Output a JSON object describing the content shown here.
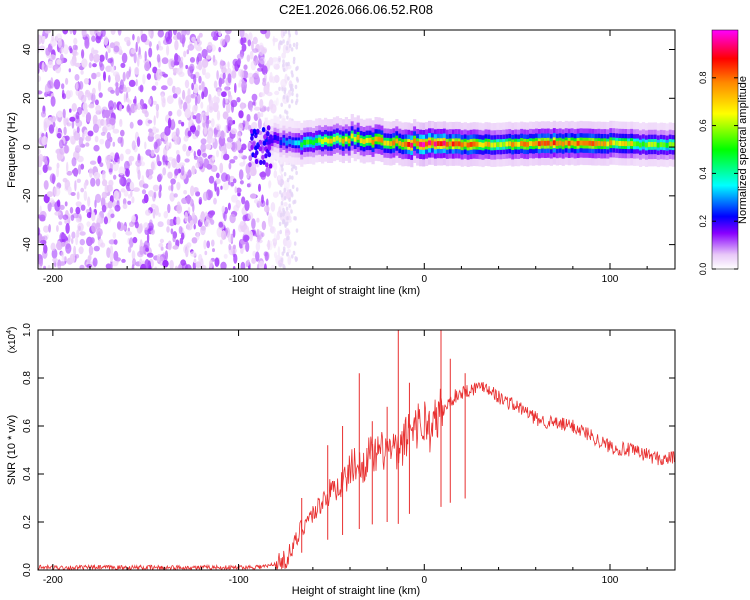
{
  "figure_title": "C2E1.2026.066.06.52.R08",
  "chart_data": [
    {
      "type": "heatmap",
      "title": "C2E1.2026.066.06.52.R08",
      "xlabel": "Height of straight line (km)",
      "ylabel": "Frequency (Hz)",
      "xlim": [
        -208,
        135
      ],
      "ylim": [
        -50,
        48
      ],
      "xticks": [
        -200,
        -100,
        0,
        100
      ],
      "yticks": [
        -40,
        -20,
        0,
        20,
        40
      ],
      "colorbar": {
        "label": "Normalized spectral amplitude",
        "range": [
          0,
          1
        ],
        "ticks": [
          0.0,
          0.2,
          0.4,
          0.6,
          0.8
        ],
        "colormap": [
          "#ffffff",
          "#e8c8f8",
          "#8800ff",
          "#0000ff",
          "#00ffff",
          "#00ff00",
          "#ffff00",
          "#ff8800",
          "#ff0000",
          "#ff00ff"
        ]
      },
      "description": "Broadband noise below about -80 km; narrowband signal near 0 Hz from -80 km to the end of the axis",
      "noise_region_km": [
        -208,
        -78
      ],
      "signal_band_points": [
        {
          "x": -90,
          "y": 2,
          "amp": 0.35
        },
        {
          "x": -80,
          "y": 3,
          "amp": 0.3
        },
        {
          "x": -70,
          "y": 2,
          "amp": 0.5
        },
        {
          "x": -60,
          "y": 2,
          "amp": 0.6
        },
        {
          "x": -50,
          "y": 2.5,
          "amp": 0.7
        },
        {
          "x": -40,
          "y": 3.5,
          "amp": 0.75
        },
        {
          "x": -30,
          "y": 3,
          "amp": 0.75
        },
        {
          "x": -20,
          "y": 2,
          "amp": 0.8
        },
        {
          "x": -10,
          "y": 1.5,
          "amp": 0.9
        },
        {
          "x": 0,
          "y": 1.5,
          "amp": 0.95
        },
        {
          "x": 10,
          "y": 1.5,
          "amp": 0.9
        },
        {
          "x": 20,
          "y": 1,
          "amp": 0.85
        },
        {
          "x": 40,
          "y": 1,
          "amp": 0.7
        },
        {
          "x": 60,
          "y": 1.5,
          "amp": 0.85
        },
        {
          "x": 80,
          "y": 1.5,
          "amp": 0.85
        },
        {
          "x": 100,
          "y": 1.5,
          "amp": 0.75
        },
        {
          "x": 120,
          "y": 1,
          "amp": 0.65
        },
        {
          "x": 135,
          "y": 1,
          "amp": 0.6
        }
      ]
    },
    {
      "type": "line",
      "xlabel": "Height of straight line (km)",
      "ylabel": "SNR (10 * v/v)",
      "yscale_label": "(x10",
      "yscale_exp": "4",
      "xlim": [
        -208,
        135
      ],
      "ylim": [
        0,
        1.0
      ],
      "xticks": [
        -200,
        -100,
        0,
        100
      ],
      "yticks": [
        0.0,
        0.2,
        0.4,
        0.6,
        0.8,
        1.0
      ],
      "color": "#e83030",
      "series": [
        {
          "name": "SNR",
          "x": [
            -208,
            -150,
            -100,
            -85,
            -78,
            -74,
            -70,
            -66,
            -62,
            -58,
            -54,
            -50,
            -46,
            -42,
            -38,
            -34,
            -30,
            -26,
            -22,
            -18,
            -14,
            -10,
            -6,
            -2,
            0,
            4,
            8,
            12,
            16,
            20,
            24,
            28,
            32,
            36,
            40,
            45,
            50,
            55,
            60,
            70,
            80,
            90,
            98,
            100,
            102,
            110,
            120,
            128,
            135
          ],
          "y": [
            0.01,
            0.01,
            0.01,
            0.015,
            0.03,
            0.05,
            0.1,
            0.18,
            0.22,
            0.25,
            0.3,
            0.33,
            0.35,
            0.38,
            0.45,
            0.42,
            0.48,
            0.47,
            0.5,
            0.5,
            0.48,
            0.55,
            0.62,
            0.6,
            0.62,
            0.58,
            0.65,
            0.68,
            0.72,
            0.74,
            0.75,
            0.76,
            0.77,
            0.75,
            0.72,
            0.7,
            0.68,
            0.66,
            0.63,
            0.61,
            0.6,
            0.56,
            0.52,
            0.52,
            0.51,
            0.5,
            0.48,
            0.46,
            0.47
          ]
        }
      ],
      "spikes": [
        {
          "x": -66,
          "y": 0.3
        },
        {
          "x": -52,
          "y": 0.52
        },
        {
          "x": -44,
          "y": 0.6
        },
        {
          "x": -35,
          "y": 0.82
        },
        {
          "x": -28,
          "y": 0.62
        },
        {
          "x": -20,
          "y": 0.68
        },
        {
          "x": -14,
          "y": 1.0
        },
        {
          "x": -8,
          "y": 0.78
        },
        {
          "x": 9,
          "y": 1.0
        },
        {
          "x": 14,
          "y": 0.88
        },
        {
          "x": 22,
          "y": 0.82
        }
      ]
    }
  ]
}
